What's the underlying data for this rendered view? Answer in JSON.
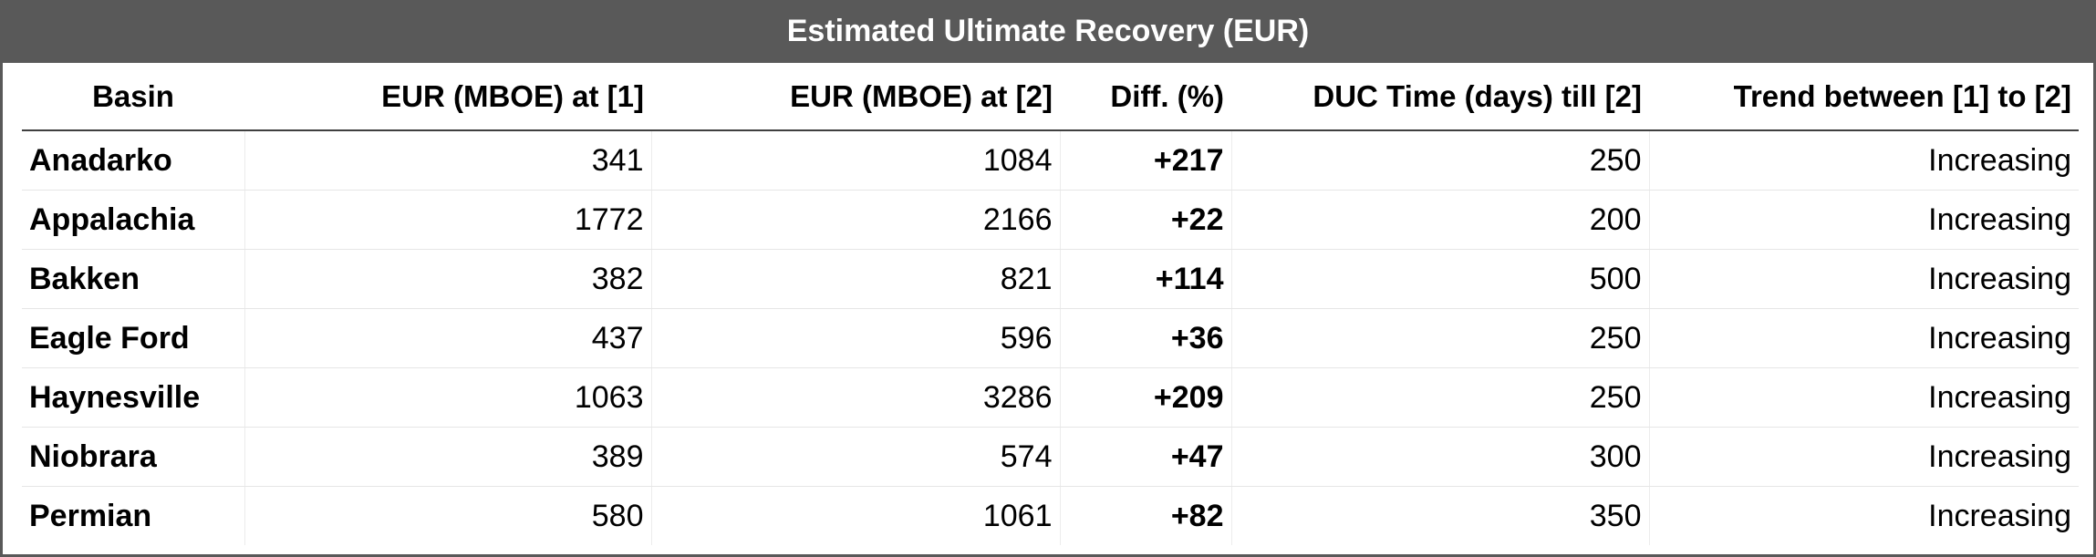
{
  "title": "Estimated Ultimate Recovery (EUR)",
  "table": {
    "headers": [
      "Basin",
      "EUR (MBOE) at [1]",
      "EUR (MBOE) at [2]",
      "Diff. (%)",
      "DUC Time (days) till [2]",
      "Trend between [1] to [2]"
    ],
    "rows": [
      [
        "Anadarko",
        "341",
        "1084",
        "+217",
        "250",
        "Increasing"
      ],
      [
        "Appalachia",
        "1772",
        "2166",
        "+22",
        "200",
        "Increasing"
      ],
      [
        "Bakken",
        "382",
        "821",
        "+114",
        "500",
        "Increasing"
      ],
      [
        "Eagle Ford",
        "437",
        "596",
        "+36",
        "250",
        "Increasing"
      ],
      [
        "Haynesville",
        "1063",
        "3286",
        "+209",
        "250",
        "Increasing"
      ],
      [
        "Niobrara",
        "389",
        "574",
        "+47",
        "300",
        "Increasing"
      ],
      [
        "Permian",
        "580",
        "1061",
        "+82",
        "350",
        "Increasing"
      ]
    ]
  },
  "colors": {
    "title_bar": "#595959",
    "title_text": "#ffffff"
  }
}
